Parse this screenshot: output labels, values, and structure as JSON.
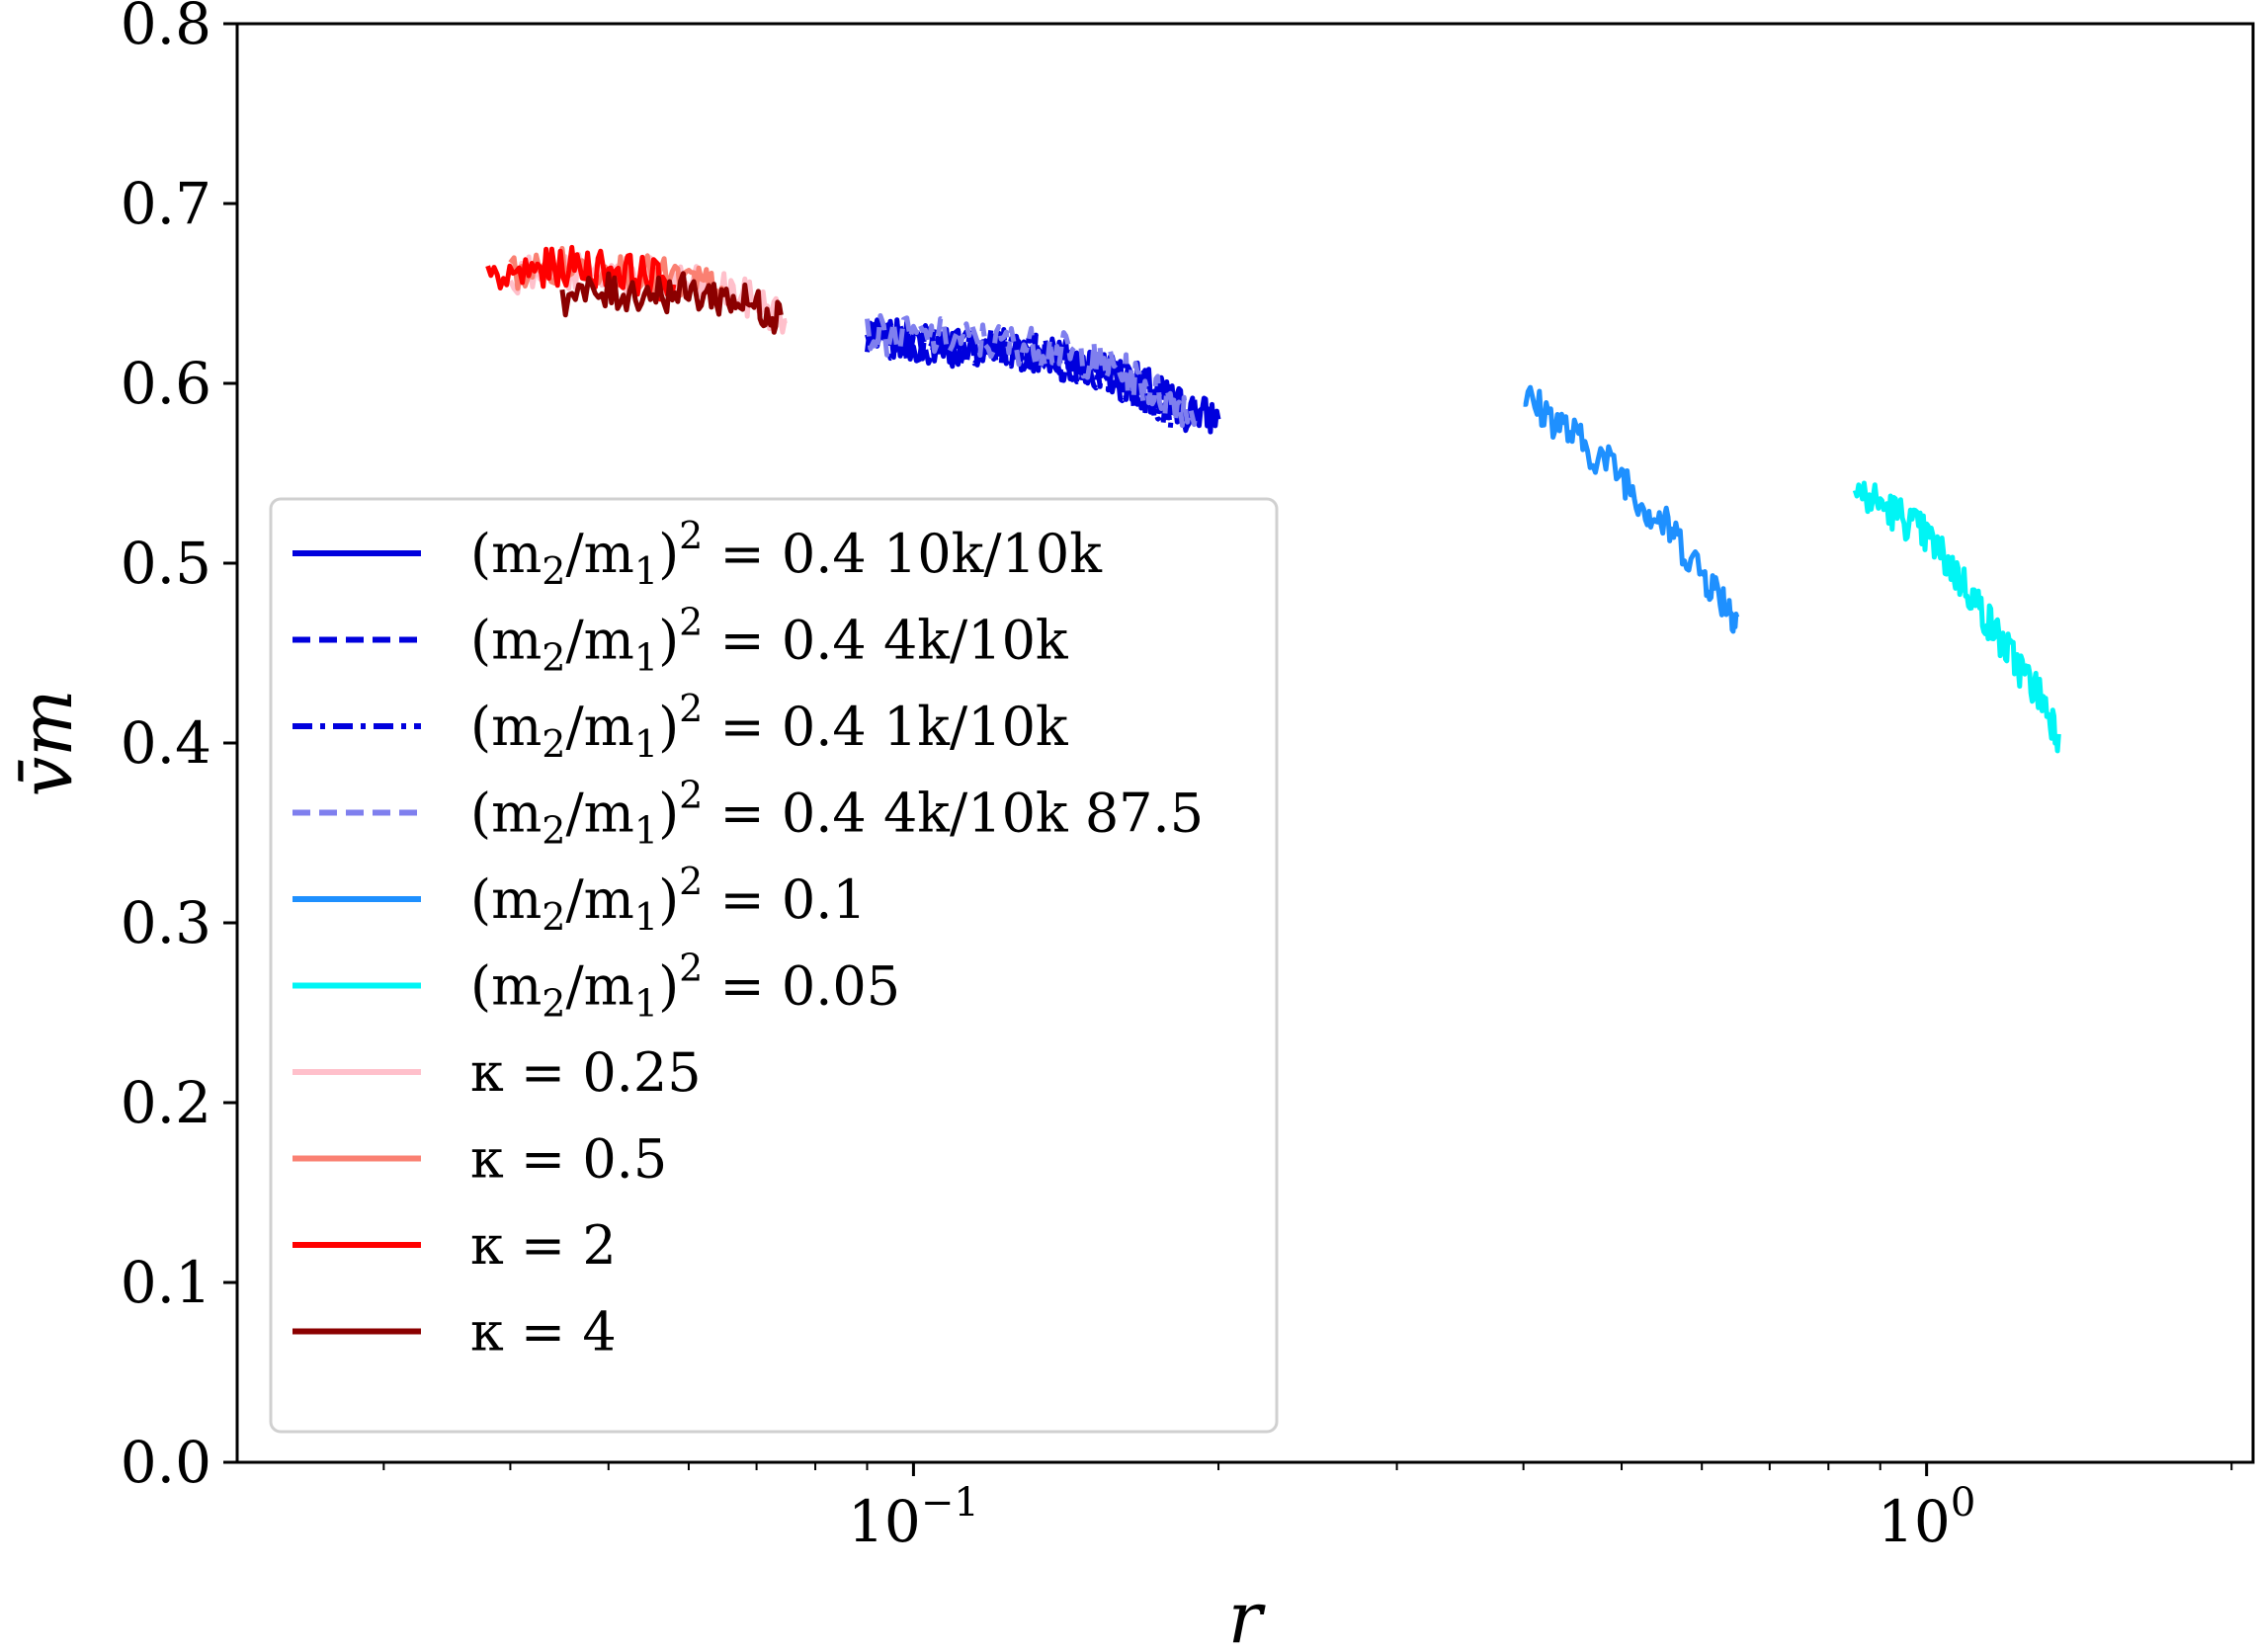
{
  "chart_data": {
    "type": "line",
    "xlabel": "r",
    "ylabel": "v̄m",
    "xscale": "log",
    "xlim": [
      0.0215,
      2.1
    ],
    "ylim": [
      0.0,
      0.8
    ],
    "yticks": [
      {
        "value": 0.0,
        "label": "0.0"
      },
      {
        "value": 0.1,
        "label": "0.1"
      },
      {
        "value": 0.2,
        "label": "0.2"
      },
      {
        "value": 0.3,
        "label": "0.3"
      },
      {
        "value": 0.4,
        "label": "0.4"
      },
      {
        "value": 0.5,
        "label": "0.5"
      },
      {
        "value": 0.6,
        "label": "0.6"
      },
      {
        "value": 0.7,
        "label": "0.7"
      },
      {
        "value": 0.8,
        "label": "0.8"
      }
    ],
    "xticks": [
      {
        "value": 0.1,
        "base": "10",
        "exp": "−1"
      },
      {
        "value": 1.0,
        "base": "10",
        "exp": "0"
      }
    ],
    "grid": false,
    "legend_position": "center-left",
    "series": [
      {
        "name": "(m2/m1)^2 = 0.4  10k/10k",
        "color": "#0000dd",
        "dash": "solid",
        "x": [
          0.09,
          0.1,
          0.11,
          0.12,
          0.13,
          0.14,
          0.15,
          0.16,
          0.17,
          0.18,
          0.19,
          0.2
        ],
        "y": [
          0.625,
          0.623,
          0.621,
          0.62,
          0.618,
          0.615,
          0.611,
          0.605,
          0.598,
          0.59,
          0.584,
          0.58
        ]
      },
      {
        "name": "(m2/m1)^2 = 0.4  4k/10k",
        "color": "#0000dd",
        "dash": "dashed",
        "x": [
          0.09,
          0.1,
          0.11,
          0.12,
          0.13,
          0.14,
          0.15,
          0.16,
          0.17,
          0.18,
          0.19
        ],
        "y": [
          0.626,
          0.624,
          0.622,
          0.62,
          0.617,
          0.613,
          0.608,
          0.602,
          0.595,
          0.588,
          0.582
        ]
      },
      {
        "name": "(m2/m1)^2 = 0.4  1k/10k",
        "color": "#0000dd",
        "dash": "dashdot",
        "x": [
          0.09,
          0.1,
          0.11,
          0.12,
          0.13,
          0.14,
          0.15,
          0.16,
          0.17,
          0.18
        ],
        "y": [
          0.624,
          0.622,
          0.62,
          0.619,
          0.616,
          0.612,
          0.607,
          0.6,
          0.592,
          0.585
        ]
      },
      {
        "name": "(m2/m1)^2 = 0.4  4k/10k  87.5",
        "color": "#7f7fee",
        "dash": "dashed",
        "x": [
          0.09,
          0.1,
          0.11,
          0.12,
          0.13,
          0.14,
          0.15,
          0.16,
          0.17,
          0.18,
          0.19
        ],
        "y": [
          0.627,
          0.626,
          0.625,
          0.623,
          0.621,
          0.618,
          0.613,
          0.607,
          0.598,
          0.59,
          0.584
        ]
      },
      {
        "name": "(m2/m1)^2 = 0.1",
        "color": "#1e90ff",
        "dash": "solid",
        "x": [
          0.4,
          0.43,
          0.46,
          0.5,
          0.53,
          0.56,
          0.6,
          0.63,
          0.65
        ],
        "y": [
          0.592,
          0.58,
          0.565,
          0.55,
          0.53,
          0.518,
          0.495,
          0.48,
          0.47
        ]
      },
      {
        "name": "(m2/m1)^2 = 0.05",
        "color": "#00f5f5",
        "dash": "solid",
        "x": [
          0.85,
          0.9,
          0.95,
          1.0,
          1.05,
          1.1,
          1.15,
          1.2,
          1.25,
          1.3,
          1.35
        ],
        "y": [
          0.54,
          0.533,
          0.525,
          0.515,
          0.5,
          0.485,
          0.468,
          0.452,
          0.438,
          0.425,
          0.405
        ]
      },
      {
        "name": "κ = 0.25",
        "color": "#ffc0cb",
        "dash": "solid",
        "x": [
          0.04,
          0.045,
          0.05,
          0.055,
          0.06,
          0.065,
          0.07,
          0.075
        ],
        "y": [
          0.66,
          0.662,
          0.661,
          0.659,
          0.655,
          0.651,
          0.645,
          0.635
        ]
      },
      {
        "name": "κ = 0.5",
        "color": "#fa8072",
        "dash": "solid",
        "x": [
          0.04,
          0.045,
          0.05,
          0.055,
          0.06,
          0.065
        ],
        "y": [
          0.661,
          0.665,
          0.663,
          0.66,
          0.656,
          0.652
        ]
      },
      {
        "name": "κ = 2",
        "color": "#ff0000",
        "dash": "solid",
        "x": [
          0.038,
          0.042,
          0.046,
          0.05,
          0.054,
          0.058
        ],
        "y": [
          0.655,
          0.663,
          0.665,
          0.664,
          0.66,
          0.655
        ]
      },
      {
        "name": "κ = 4",
        "color": "#8b0000",
        "dash": "solid",
        "x": [
          0.045,
          0.05,
          0.055,
          0.06,
          0.065,
          0.07,
          0.074
        ],
        "y": [
          0.648,
          0.65,
          0.651,
          0.65,
          0.648,
          0.643,
          0.638
        ]
      }
    ]
  },
  "legend": {
    "items": [
      {
        "main": "(m",
        "sub1": "2",
        "mid": "/m",
        "sub2": "1",
        "close": ")",
        "sup": "2",
        "rest": " = 0.4  10k/10k",
        "color": "#0000dd",
        "dash": "solid"
      },
      {
        "main": "(m",
        "sub1": "2",
        "mid": "/m",
        "sub2": "1",
        "close": ")",
        "sup": "2",
        "rest": " = 0.4  4k/10k",
        "color": "#0000dd",
        "dash": "dashed"
      },
      {
        "main": "(m",
        "sub1": "2",
        "mid": "/m",
        "sub2": "1",
        "close": ")",
        "sup": "2",
        "rest": " = 0.4  1k/10k",
        "color": "#0000dd",
        "dash": "dashdot"
      },
      {
        "main": "(m",
        "sub1": "2",
        "mid": "/m",
        "sub2": "1",
        "close": ")",
        "sup": "2",
        "rest": " = 0.4  4k/10k  87.5",
        "color": "#7f7fee",
        "dash": "dashed"
      },
      {
        "main": "(m",
        "sub1": "2",
        "mid": "/m",
        "sub2": "1",
        "close": ")",
        "sup": "2",
        "rest": " = 0.1",
        "color": "#1e90ff",
        "dash": "solid"
      },
      {
        "main": "(m",
        "sub1": "2",
        "mid": "/m",
        "sub2": "1",
        "close": ")",
        "sup": "2",
        "rest": " = 0.05",
        "color": "#00f5f5",
        "dash": "solid"
      },
      {
        "main": "κ = 0.25",
        "color": "#ffc0cb",
        "dash": "solid"
      },
      {
        "main": "κ = 0.5",
        "color": "#fa8072",
        "dash": "solid"
      },
      {
        "main": "κ = 2",
        "color": "#ff0000",
        "dash": "solid"
      },
      {
        "main": "κ = 4",
        "color": "#8b0000",
        "dash": "solid"
      }
    ]
  }
}
